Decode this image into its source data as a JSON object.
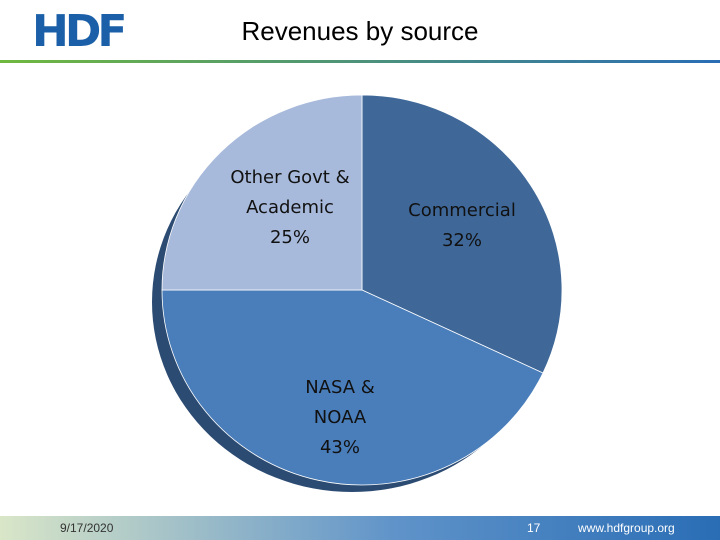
{
  "logo": "HDF",
  "chart_data": {
    "type": "pie",
    "title": "Revenues by source",
    "categories": [
      "Commercial",
      "NASA & NOAA",
      "Other Govt & Academic"
    ],
    "values": [
      32,
      43,
      25
    ],
    "value_labels": [
      "32%",
      "43%",
      "25%"
    ],
    "colors": [
      "#3f6899",
      "#4a7ebb",
      "#a8badb"
    ]
  },
  "footer": {
    "date": "9/17/2020",
    "page": "17",
    "url": "www.hdfgroup.org"
  }
}
